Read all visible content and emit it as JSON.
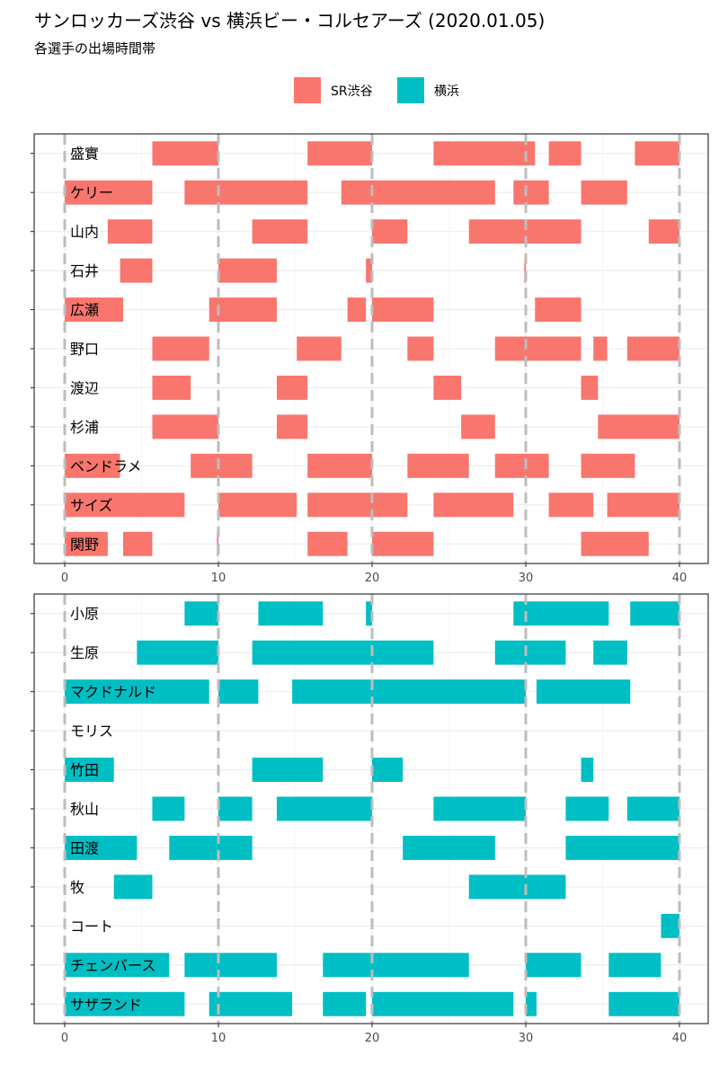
{
  "title": "サンロッカーズ渋谷 vs 横浜ビー・コルセアーズ (2020.01.05)",
  "subtitle": "各選手の出場時間帯",
  "legend": [
    {
      "label": "SR渋谷",
      "color": "#F8766D"
    },
    {
      "label": "横浜",
      "color": "#00BFC4"
    }
  ],
  "chart_data": {
    "type": "timeline",
    "title": "サンロッカーズ渋谷 vs 横浜ビー・コルセアーズ (2020.01.05)",
    "subtitle": "各選手の出場時間帯",
    "x_label": "",
    "xlim": [
      -2,
      41
    ],
    "x_ticks": [
      0,
      10,
      20,
      30,
      40
    ],
    "x_tick_labels": [
      "0",
      "10",
      "20",
      "30",
      "40"
    ],
    "quarter_lines": [
      0,
      10,
      20,
      30,
      40
    ],
    "panels": [
      {
        "team": "SR渋谷",
        "color": "#F8766D",
        "players": [
          {
            "name": "盛實",
            "intervals": [
              [
                5.7,
                10
              ],
              [
                15.8,
                20
              ],
              [
                24,
                30.6
              ],
              [
                31.5,
                33.6
              ],
              [
                37.1,
                40
              ]
            ]
          },
          {
            "name": "ケリー",
            "intervals": [
              [
                0,
                5.7
              ],
              [
                7.8,
                15.8
              ],
              [
                18,
                28
              ],
              [
                29.2,
                31.5
              ],
              [
                33.6,
                36.6
              ]
            ]
          },
          {
            "name": "山内",
            "intervals": [
              [
                2.8,
                5.7
              ],
              [
                12.2,
                15.8
              ],
              [
                20,
                22.3
              ],
              [
                26.3,
                30
              ],
              [
                30,
                33.6
              ],
              [
                38,
                40
              ]
            ]
          },
          {
            "name": "石井",
            "intervals": [
              [
                3.6,
                5.7
              ],
              [
                10,
                13.8
              ],
              [
                19.6,
                20
              ],
              [
                29.9,
                30
              ]
            ]
          },
          {
            "name": "広瀬",
            "intervals": [
              [
                0,
                3.8
              ],
              [
                9.4,
                13.8
              ],
              [
                18.4,
                19.6
              ],
              [
                20,
                24
              ],
              [
                30.6,
                33.6
              ]
            ]
          },
          {
            "name": "野口",
            "intervals": [
              [
                5.7,
                9.4
              ],
              [
                15.1,
                18
              ],
              [
                22.3,
                24
              ],
              [
                28,
                30
              ],
              [
                30,
                33.6
              ],
              [
                34.4,
                35.3
              ],
              [
                36.6,
                40
              ]
            ]
          },
          {
            "name": "渡辺",
            "intervals": [
              [
                5.7,
                8.2
              ],
              [
                13.8,
                15.8
              ],
              [
                24,
                25.8
              ],
              [
                33.6,
                34.7
              ]
            ]
          },
          {
            "name": "杉浦",
            "intervals": [
              [
                5.7,
                10
              ],
              [
                13.8,
                15.8
              ],
              [
                25.8,
                28
              ],
              [
                34.7,
                40
              ]
            ]
          },
          {
            "name": "ベンドラメ",
            "intervals": [
              [
                0,
                3.6
              ],
              [
                8.2,
                12.2
              ],
              [
                15.8,
                20
              ],
              [
                22.3,
                26.3
              ],
              [
                28,
                31.5
              ],
              [
                33.6,
                37.1
              ]
            ]
          },
          {
            "name": "サイズ",
            "intervals": [
              [
                0,
                7.8
              ],
              [
                10,
                15.1
              ],
              [
                15.8,
                22.3
              ],
              [
                24,
                29.2
              ],
              [
                31.5,
                34.4
              ],
              [
                35.3,
                40
              ]
            ]
          },
          {
            "name": "関野",
            "intervals": [
              [
                0,
                2.8
              ],
              [
                3.8,
                5.7
              ],
              [
                9.9,
                10
              ],
              [
                15.8,
                18.4
              ],
              [
                20,
                24
              ],
              [
                33.6,
                38
              ]
            ]
          }
        ]
      },
      {
        "team": "横浜",
        "color": "#00BFC4",
        "players": [
          {
            "name": "小原",
            "intervals": [
              [
                7.8,
                10
              ],
              [
                12.6,
                16.8
              ],
              [
                19.6,
                20
              ],
              [
                29.2,
                30
              ],
              [
                30,
                35.4
              ],
              [
                36.8,
                40
              ]
            ]
          },
          {
            "name": "生原",
            "intervals": [
              [
                4.7,
                10
              ],
              [
                12.2,
                24
              ],
              [
                28,
                30
              ],
              [
                30,
                32.6
              ],
              [
                34.4,
                36.6
              ]
            ]
          },
          {
            "name": "マクドナルド",
            "intervals": [
              [
                0,
                9.4
              ],
              [
                10,
                12.6
              ],
              [
                14.8,
                30
              ],
              [
                30.7,
                36.8
              ]
            ]
          },
          {
            "name": "モリス",
            "intervals": []
          },
          {
            "name": "竹田",
            "intervals": [
              [
                0,
                3.2
              ],
              [
                12.2,
                16.8
              ],
              [
                20,
                22
              ],
              [
                33.6,
                34.4
              ]
            ]
          },
          {
            "name": "秋山",
            "intervals": [
              [
                5.7,
                7.8
              ],
              [
                10,
                12.2
              ],
              [
                13.8,
                20
              ],
              [
                24,
                30
              ],
              [
                32.6,
                35.4
              ],
              [
                36.6,
                40
              ]
            ]
          },
          {
            "name": "田渡",
            "intervals": [
              [
                0,
                4.7
              ],
              [
                6.8,
                12.2
              ],
              [
                22,
                28
              ],
              [
                32.6,
                40
              ]
            ]
          },
          {
            "name": "牧",
            "intervals": [
              [
                3.2,
                5.7
              ],
              [
                26.3,
                32.6
              ]
            ]
          },
          {
            "name": "コート",
            "intervals": [
              [
                38.8,
                40
              ]
            ]
          },
          {
            "name": "チェンバース",
            "intervals": [
              [
                0,
                6.8
              ],
              [
                7.8,
                13.8
              ],
              [
                16.8,
                26.3
              ],
              [
                30,
                33.6
              ],
              [
                35.4,
                38.8
              ]
            ]
          },
          {
            "name": "サザランド",
            "intervals": [
              [
                0,
                7.8
              ],
              [
                9.4,
                14.8
              ],
              [
                16.8,
                19.6
              ],
              [
                20,
                29.2
              ],
              [
                30,
                30.7
              ],
              [
                35.4,
                40
              ]
            ]
          }
        ]
      }
    ]
  }
}
